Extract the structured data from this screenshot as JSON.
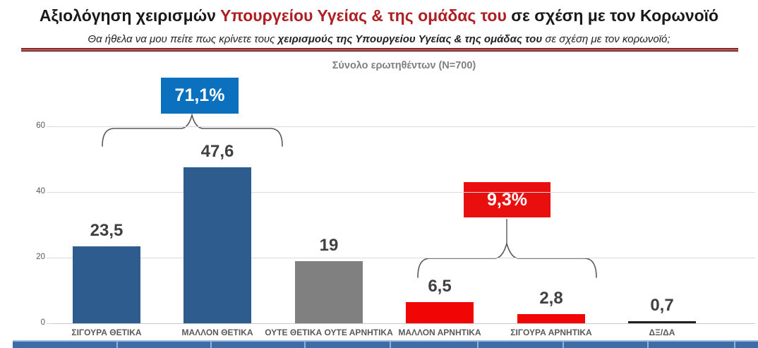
{
  "header": {
    "title_black_1": "Αξιολόγηση χειρισμών ",
    "title_red": "Υπουργείου Υγείας  & της ομάδας του",
    "title_black_2": " σε σχέση με τον Κορωνοϊό",
    "subtitle_prefix": "Θα ήθελα να μου πείτε πως κρίνετε τους ",
    "subtitle_bold": "χειρισμούς της Υπουργείου Υγείας  & της ομάδας του",
    "subtitle_suffix": " σε σχέση με τον κορωνοϊό;"
  },
  "sample_label": "Σύνολο ερωτηθέντων (N=700)",
  "chart_data": {
    "type": "bar",
    "title": "Αξιολόγηση χειρισμών Υπουργείου Υγείας & της ομάδας του σε σχέση με τον Κορωνοϊό",
    "subtitle": "Σύνολο ερωτηθέντων (N=700)",
    "categories": [
      "ΣΙΓΟΥΡΑ ΘΕΤΙΚΑ",
      "ΜΑΛΛΟΝ ΘΕΤΙΚΑ",
      "ΟΥΤΕ ΘΕΤΙΚΑ ΟΥΤΕ ΑΡΝΗΤΙΚΑ",
      "ΜΑΛΛΟΝ ΑΡΝΗΤΙΚΑ",
      "ΣΙΓΟΥΡΑ ΑΡΝΗΤΙΚΑ",
      "ΔΞ/ΔΑ"
    ],
    "values": [
      23.5,
      47.6,
      19,
      6.5,
      2.8,
      0.7
    ],
    "value_labels": [
      "23,5",
      "47,6",
      "19",
      "6,5",
      "2,8",
      "0,7"
    ],
    "bar_colors": [
      "#2e5c8f",
      "#2e5c8f",
      "#808080",
      "#f20505",
      "#f20505",
      "#212121"
    ],
    "xlabel": "",
    "ylabel": "",
    "ylim": [
      0,
      65
    ],
    "yticks": [
      "0",
      "20",
      "40",
      "60"
    ],
    "ytick_values": [
      0,
      20,
      40,
      60
    ],
    "grid": true,
    "legend": false,
    "annotations": [
      {
        "label": "71,1%",
        "color": "#0b70be",
        "covers": [
          "ΣΙΓΟΥΡΑ ΘΕΤΙΚΑ",
          "ΜΑΛΛΟΝ ΘΕΤΙΚΑ"
        ]
      },
      {
        "label": "9,3%",
        "color": "#e90f0f",
        "covers": [
          "ΜΑΛΛΟΝ ΑΡΝΗΤΙΚΑ",
          "ΣΙΓΟΥΡΑ ΑΡΝΗΤΙΚΑ"
        ]
      }
    ]
  },
  "colors": {
    "title_accent": "#ae1f24",
    "separator": "#b4504b",
    "positive_bar": "#2e5c8f",
    "neutral_bar": "#808080",
    "negative_bar": "#f20505",
    "dk_da_bar": "#212121",
    "positive_callout": "#0b70be",
    "negative_callout": "#e90f0f",
    "footer_strip": "#3e6ca8"
  }
}
